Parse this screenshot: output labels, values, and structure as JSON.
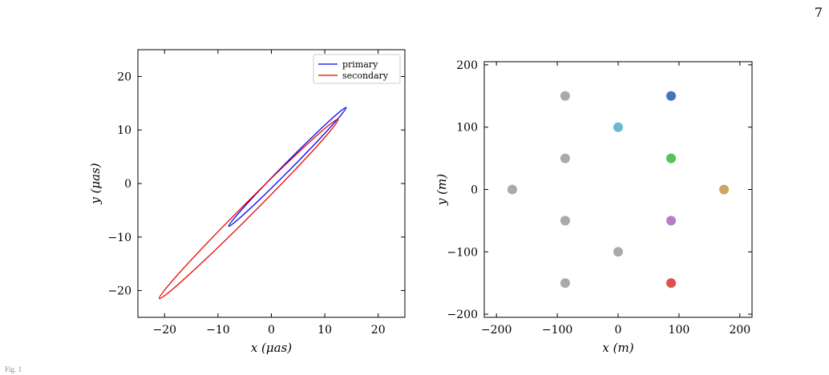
{
  "page": {
    "number": "7",
    "caption_stub": "Fig. 1"
  },
  "chart_data": [
    {
      "type": "line",
      "xlabel": "x (μas)",
      "ylabel": "y (μas)",
      "xlim": [
        -25,
        25
      ],
      "ylim": [
        -25,
        25
      ],
      "xticks": [
        -20,
        -10,
        0,
        10,
        20
      ],
      "yticks": [
        -20,
        -10,
        0,
        10,
        20
      ],
      "xtick_labels": [
        "−20",
        "−10",
        "0",
        "10",
        "20"
      ],
      "ytick_labels": [
        "−20",
        "−10",
        "0",
        "10",
        "20"
      ],
      "grid": false,
      "legend_position": "top-right",
      "series": [
        {
          "name": "primary",
          "color": "#0000ee",
          "closed": true,
          "points": [
            [
              -7,
              -7.2
            ],
            [
              -8,
              -8
            ],
            [
              -7.2,
              -7.4
            ],
            [
              14,
              14.2
            ],
            [
              13,
              13
            ],
            [
              -7,
              -7.2
            ]
          ],
          "ellipse": {
            "from": [
              -8,
              -8
            ],
            "to": [
              14,
              14.2
            ],
            "half_width": 0.7
          }
        },
        {
          "name": "secondary",
          "color": "#ee0000",
          "closed": true,
          "ellipse": {
            "from": [
              -21,
              -21.5
            ],
            "to": [
              12.5,
              12
            ],
            "half_width": 1.1
          }
        }
      ]
    },
    {
      "type": "scatter",
      "xlabel": "x (m)",
      "ylabel": "y (m)",
      "xlim": [
        -220,
        220
      ],
      "ylim": [
        -205,
        205
      ],
      "xticks": [
        -200,
        -100,
        0,
        100,
        200
      ],
      "yticks": [
        -200,
        -100,
        0,
        100,
        200
      ],
      "xtick_labels": [
        "−200",
        "−100",
        "0",
        "100",
        "200"
      ],
      "ytick_labels": [
        "−200",
        "−100",
        "0",
        "100",
        "200"
      ],
      "grid": false,
      "points": [
        {
          "x": -87,
          "y": 150,
          "color": "#aaaaaa"
        },
        {
          "x": 87,
          "y": 150,
          "color": "#4472c4"
        },
        {
          "x": 0,
          "y": 100,
          "color": "#6bb8d6"
        },
        {
          "x": -87,
          "y": 50,
          "color": "#aaaaaa"
        },
        {
          "x": 87,
          "y": 50,
          "color": "#55c356"
        },
        {
          "x": -174,
          "y": 0,
          "color": "#aaaaaa"
        },
        {
          "x": 174,
          "y": 0,
          "color": "#c8a862"
        },
        {
          "x": -87,
          "y": -50,
          "color": "#aaaaaa"
        },
        {
          "x": 87,
          "y": -50,
          "color": "#b57cc7"
        },
        {
          "x": 0,
          "y": -100,
          "color": "#aaaaaa"
        },
        {
          "x": -87,
          "y": -150,
          "color": "#aaaaaa"
        },
        {
          "x": 87,
          "y": -150,
          "color": "#d9534f"
        }
      ]
    }
  ]
}
